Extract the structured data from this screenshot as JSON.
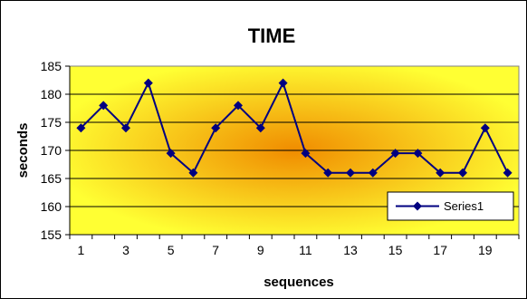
{
  "chart_data": {
    "type": "line",
    "title": "TIME",
    "xlabel": "sequences",
    "ylabel": "seconds",
    "x": [
      1,
      2,
      3,
      4,
      5,
      6,
      7,
      8,
      9,
      10,
      11,
      12,
      13,
      14,
      15,
      16,
      17,
      18,
      19,
      20
    ],
    "x_tick_labels": [
      "1",
      "3",
      "5",
      "7",
      "9",
      "11",
      "13",
      "15",
      "17",
      "19"
    ],
    "y_tick_labels": [
      "155",
      "160",
      "165",
      "170",
      "175",
      "180",
      "185"
    ],
    "ylim": [
      155,
      185
    ],
    "grid": "horizontal",
    "legend_position": "bottom-right",
    "series": [
      {
        "name": "Series1",
        "color": "#000080",
        "marker": "diamond",
        "values": [
          174,
          178,
          174,
          182,
          169.5,
          166,
          174,
          178,
          174,
          182,
          169.5,
          166,
          166,
          166,
          169.5,
          169.5,
          166,
          166,
          174,
          166
        ]
      }
    ],
    "background": {
      "center": "#f08c00",
      "edge": "#ffff33"
    }
  }
}
